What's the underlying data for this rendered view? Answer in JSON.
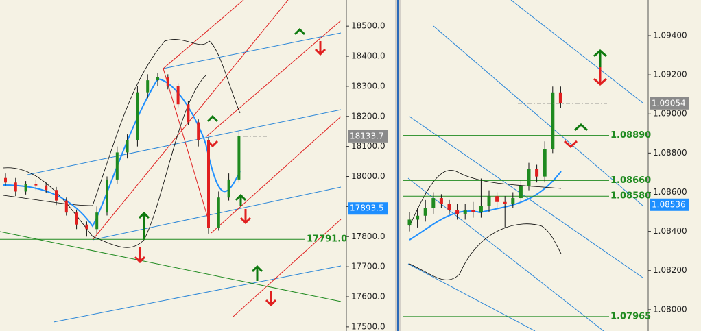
{
  "chart_data": [
    {
      "type": "candlestick",
      "ylim": [
        17486,
        18587
      ],
      "yticks": [
        {
          "value": 17500,
          "label": "17500.0"
        },
        {
          "value": 17600,
          "label": "17600.0"
        },
        {
          "value": 17700,
          "label": "17700.0"
        },
        {
          "value": 17800,
          "label": "17800.0"
        },
        {
          "value": 17900,
          "label": "17900.0"
        },
        {
          "value": 18000,
          "label": "18000.0"
        },
        {
          "value": 18100,
          "label": "18100.0"
        },
        {
          "value": 18200,
          "label": "18200.0"
        },
        {
          "value": 18300,
          "label": "18300.0"
        },
        {
          "value": 18400,
          "label": "18400.0"
        },
        {
          "value": 18500,
          "label": "18500.0"
        }
      ],
      "up_color": "#1f8a1f",
      "down_color": "#e02020",
      "open": [
        17995,
        17980,
        17950,
        17975,
        17970,
        17955,
        17920,
        17880,
        17840,
        17825,
        17880,
        17990,
        18080,
        18120,
        18280,
        18320,
        18330,
        18300,
        18240,
        18180,
        18120,
        17830,
        17930,
        17990
      ],
      "high": [
        18010,
        17995,
        17985,
        17990,
        17980,
        17965,
        17930,
        17890,
        17850,
        17900,
        18000,
        18100,
        18140,
        18300,
        18340,
        18345,
        18340,
        18310,
        18250,
        18190,
        18130,
        17950,
        18010,
        18150
      ],
      "low": [
        17970,
        17935,
        17940,
        17955,
        17945,
        17905,
        17870,
        17825,
        17800,
        17810,
        17870,
        17975,
        18060,
        18100,
        18260,
        18300,
        18290,
        18230,
        18170,
        18100,
        17810,
        17820,
        17920,
        17980
      ],
      "close": [
        17980,
        17950,
        17975,
        17970,
        17955,
        17920,
        17880,
        17840,
        17825,
        17880,
        17990,
        18080,
        18120,
        18280,
        18320,
        18330,
        18300,
        18240,
        18180,
        18120,
        17830,
        17930,
        17990,
        18133.7
      ],
      "price_labels": [
        {
          "value": 18133.7,
          "label": "18133.7",
          "color": "#8a8a8a"
        },
        {
          "value": 17893.5,
          "label": "17893.5",
          "color": "#1e8fff"
        }
      ],
      "levels": [
        {
          "value": 17791,
          "label": "17791.0"
        }
      ]
    },
    {
      "type": "candlestick",
      "ylim": [
        1.07891,
        1.09582
      ],
      "yticks": [
        {
          "value": 1.08,
          "label": "1.08000"
        },
        {
          "value": 1.082,
          "label": "1.08200"
        },
        {
          "value": 1.084,
          "label": "1.08400"
        },
        {
          "value": 1.086,
          "label": "1.08600"
        },
        {
          "value": 1.088,
          "label": "1.08800"
        },
        {
          "value": 1.09,
          "label": "1.09000"
        },
        {
          "value": 1.092,
          "label": "1.09200"
        },
        {
          "value": 1.094,
          "label": "1.09400"
        }
      ],
      "up_color": "#1f8a1f",
      "down_color": "#e02020",
      "open": [
        1.0843,
        1.0846,
        1.0848,
        1.0852,
        1.0857,
        1.0854,
        1.0851,
        1.0849,
        1.0851,
        1.085,
        1.0853,
        1.0858,
        1.0855,
        1.0854,
        1.0857,
        1.0863,
        1.0872,
        1.0868,
        1.0882,
        1.0911
      ],
      "high": [
        1.085,
        1.0852,
        1.0856,
        1.086,
        1.0859,
        1.0856,
        1.0854,
        1.0854,
        1.0855,
        1.0867,
        1.0861,
        1.086,
        1.0858,
        1.086,
        1.0866,
        1.0875,
        1.0874,
        1.0886,
        1.0914,
        1.0914
      ],
      "low": [
        1.084,
        1.0842,
        1.0845,
        1.0849,
        1.0852,
        1.0849,
        1.0846,
        1.0846,
        1.0847,
        1.0847,
        1.085,
        1.0852,
        1.0842,
        1.0852,
        1.0855,
        1.0861,
        1.0865,
        1.0865,
        1.088,
        1.0903
      ],
      "close": [
        1.0846,
        1.0848,
        1.0852,
        1.0857,
        1.0854,
        1.0851,
        1.0849,
        1.0851,
        1.085,
        1.0853,
        1.0858,
        1.0855,
        1.0854,
        1.0857,
        1.0863,
        1.0872,
        1.0868,
        1.0882,
        1.0911,
        1.09054
      ],
      "price_labels": [
        {
          "value": 1.09054,
          "label": "1.09054",
          "color": "#8a8a8a"
        },
        {
          "value": 1.08536,
          "label": "1.08536",
          "color": "#1e8fff"
        }
      ],
      "levels": [
        {
          "value": 1.0889,
          "label": "1.08890"
        },
        {
          "value": 1.0866,
          "label": "1.08660"
        },
        {
          "value": 1.0858,
          "label": "1.08580"
        },
        {
          "value": 1.07965,
          "label": "1.07965"
        }
      ]
    }
  ]
}
